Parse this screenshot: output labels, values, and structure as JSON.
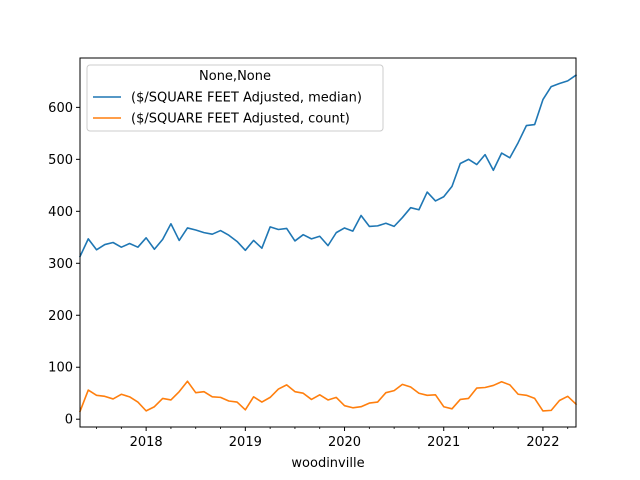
{
  "chart_data": {
    "type": "line",
    "title": "",
    "xlabel": "woodinville",
    "ylabel": "",
    "xlim": [
      "2017-05",
      "2022-05"
    ],
    "ylim": [
      -15,
      695
    ],
    "x_ticks": [
      "2018",
      "2019",
      "2020",
      "2021",
      "2022"
    ],
    "y_ticks": [
      0,
      100,
      200,
      300,
      400,
      500,
      600
    ],
    "grid": false,
    "legend": {
      "title": "None,None",
      "placement": "top-left"
    },
    "x": [
      "2017-05",
      "2017-06",
      "2017-07",
      "2017-08",
      "2017-09",
      "2017-10",
      "2017-11",
      "2017-12",
      "2018-01",
      "2018-02",
      "2018-03",
      "2018-04",
      "2018-05",
      "2018-06",
      "2018-07",
      "2018-08",
      "2018-09",
      "2018-10",
      "2018-11",
      "2018-12",
      "2019-01",
      "2019-02",
      "2019-03",
      "2019-04",
      "2019-05",
      "2019-06",
      "2019-07",
      "2019-08",
      "2019-09",
      "2019-10",
      "2019-11",
      "2019-12",
      "2020-01",
      "2020-02",
      "2020-03",
      "2020-04",
      "2020-05",
      "2020-06",
      "2020-07",
      "2020-08",
      "2020-09",
      "2020-10",
      "2020-11",
      "2020-12",
      "2021-01",
      "2021-02",
      "2021-03",
      "2021-04",
      "2021-05",
      "2021-06",
      "2021-07",
      "2021-08",
      "2021-09",
      "2021-10",
      "2021-11",
      "2021-12",
      "2022-01",
      "2022-02",
      "2022-03",
      "2022-04",
      "2022-05"
    ],
    "series": [
      {
        "name": "($/SQUARE FEET Adjusted, median)",
        "color": "#1f77b4",
        "values": [
          313,
          347,
          326,
          336,
          340,
          331,
          338,
          331,
          349,
          327,
          346,
          376,
          344,
          368,
          364,
          359,
          356,
          363,
          354,
          342,
          325,
          344,
          329,
          370,
          365,
          367,
          343,
          355,
          347,
          352,
          334,
          359,
          368,
          362,
          392,
          371,
          372,
          377,
          371,
          388,
          407,
          403,
          437,
          420,
          428,
          448,
          492,
          500,
          490,
          509,
          479,
          512,
          503,
          532,
          565,
          567,
          615,
          640,
          646,
          651,
          662
        ]
      },
      {
        "name": "($/SQUARE FEET Adjusted, count)",
        "color": "#ff7f0e",
        "values": [
          15,
          56,
          46,
          44,
          39,
          48,
          43,
          33,
          16,
          24,
          40,
          37,
          53,
          73,
          51,
          53,
          43,
          42,
          35,
          33,
          18,
          43,
          33,
          42,
          58,
          66,
          53,
          50,
          38,
          47,
          37,
          42,
          26,
          22,
          24,
          31,
          33,
          51,
          55,
          67,
          62,
          50,
          46,
          47,
          24,
          20,
          38,
          40,
          60,
          61,
          65,
          72,
          66,
          48,
          46,
          40,
          16,
          17,
          36,
          44,
          29
        ]
      }
    ]
  }
}
